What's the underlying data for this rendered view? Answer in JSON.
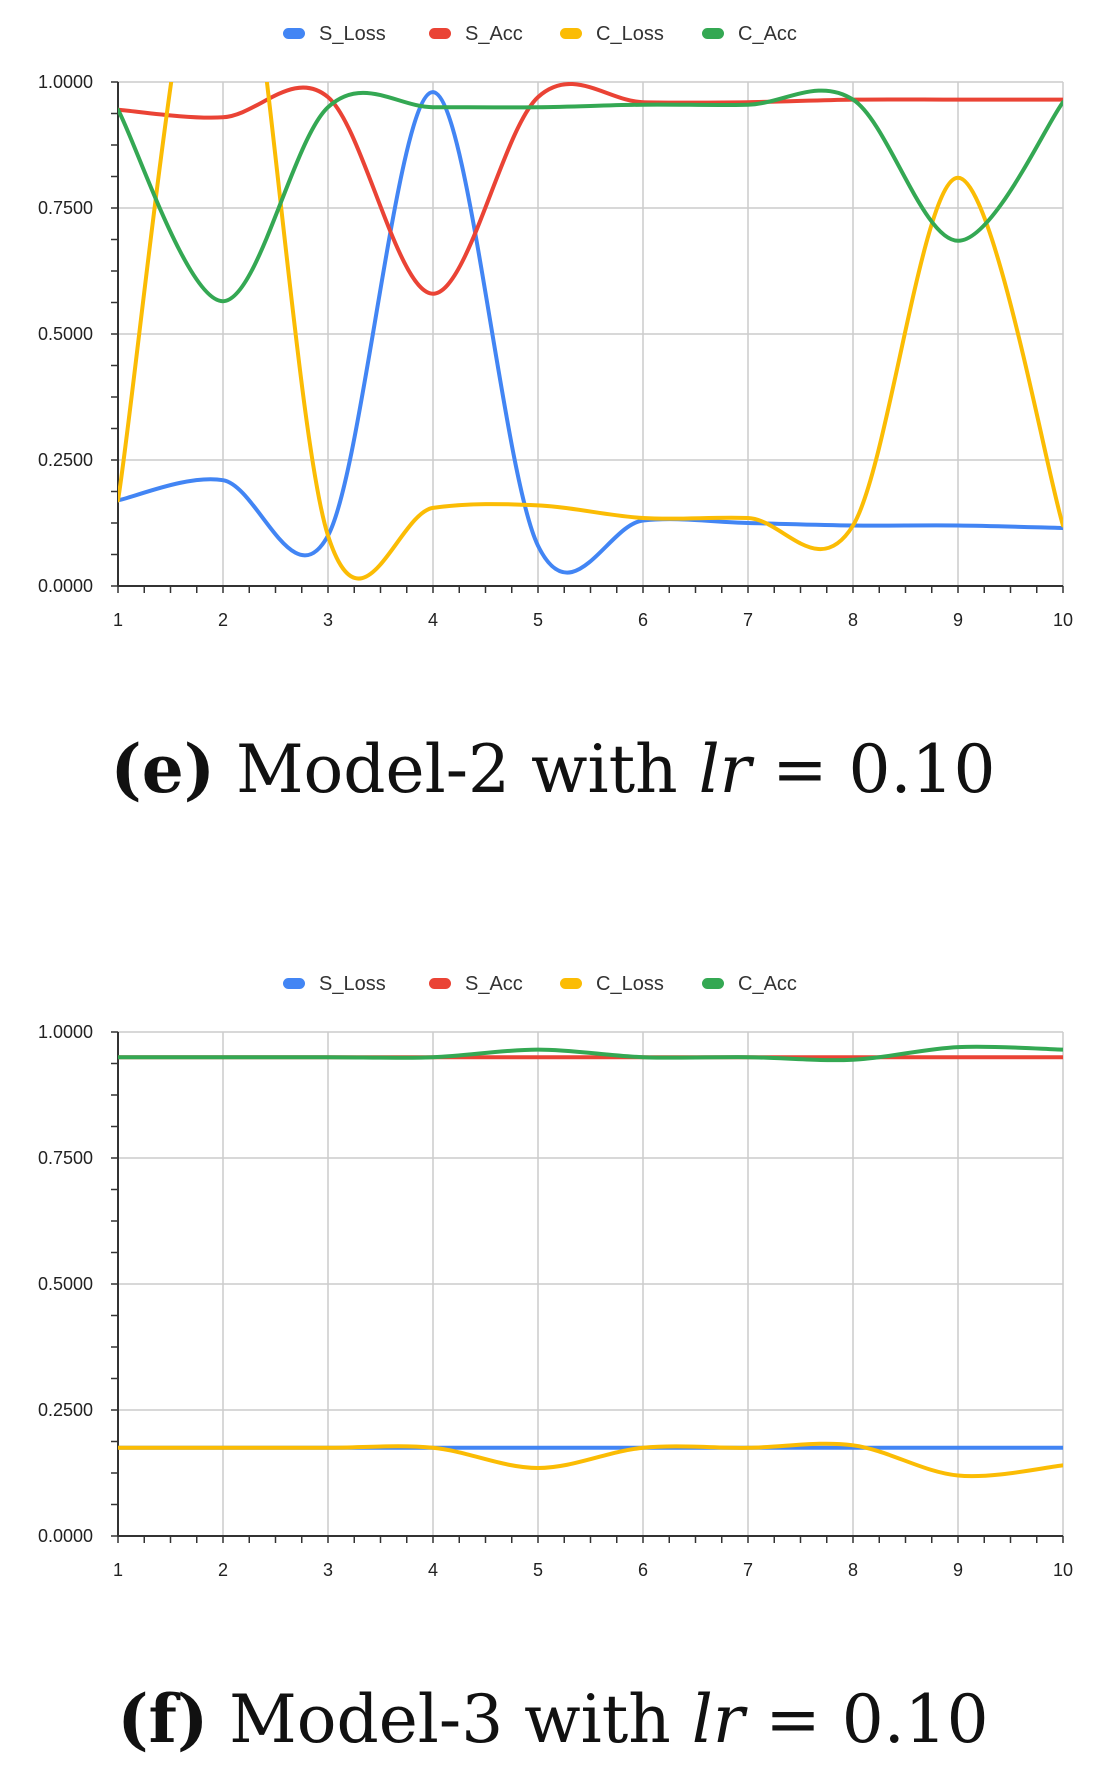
{
  "chart_data": [
    {
      "type": "line",
      "caption": {
        "tag": "(e)",
        "text": " Model-2 with ",
        "math": "lr",
        "rest": " = 0.10"
      },
      "x": [
        1,
        2,
        3,
        4,
        5,
        6,
        7,
        8,
        9,
        10
      ],
      "ylim": [
        0,
        1
      ],
      "yticks": [
        "0.0000",
        "0.2500",
        "0.5000",
        "0.7500",
        "1.0000"
      ],
      "xticks": [
        "1",
        "2",
        "3",
        "4",
        "5",
        "6",
        "7",
        "8",
        "9",
        "10"
      ],
      "grid": true,
      "legend_position": "top",
      "series": [
        {
          "name": "S_Loss",
          "color": "#4285F4",
          "values": [
            0.17,
            0.21,
            0.1,
            0.98,
            0.08,
            0.13,
            0.125,
            0.12,
            0.12,
            0.115
          ]
        },
        {
          "name": "S_Acc",
          "color": "#EA4335",
          "values": [
            0.945,
            0.93,
            0.97,
            0.58,
            0.97,
            0.96,
            0.96,
            0.965,
            0.965,
            0.965
          ]
        },
        {
          "name": "C_Loss",
          "color": "#FBBC04",
          "values": [
            0.17,
            1.45,
            0.1,
            0.155,
            0.16,
            0.135,
            0.135,
            0.12,
            0.81,
            0.12
          ]
        },
        {
          "name": "C_Acc",
          "color": "#34A853",
          "values": [
            0.945,
            0.565,
            0.95,
            0.95,
            0.95,
            0.955,
            0.955,
            0.965,
            0.685,
            0.96
          ]
        }
      ]
    },
    {
      "type": "line",
      "caption": {
        "tag": "(f)",
        "text": " Model-3 with ",
        "math": "lr",
        "rest": " = 0.10"
      },
      "x": [
        1,
        2,
        3,
        4,
        5,
        6,
        7,
        8,
        9,
        10
      ],
      "ylim": [
        0,
        1
      ],
      "yticks": [
        "0.0000",
        "0.2500",
        "0.5000",
        "0.7500",
        "1.0000"
      ],
      "xticks": [
        "1",
        "2",
        "3",
        "4",
        "5",
        "6",
        "7",
        "8",
        "9",
        "10"
      ],
      "grid": true,
      "legend_position": "top",
      "series": [
        {
          "name": "S_Loss",
          "color": "#4285F4",
          "values": [
            0.175,
            0.175,
            0.175,
            0.175,
            0.175,
            0.175,
            0.175,
            0.175,
            0.175,
            0.175
          ]
        },
        {
          "name": "S_Acc",
          "color": "#EA4335",
          "values": [
            0.95,
            0.95,
            0.95,
            0.95,
            0.95,
            0.95,
            0.95,
            0.95,
            0.95,
            0.95
          ]
        },
        {
          "name": "C_Loss",
          "color": "#FBBC04",
          "values": [
            0.175,
            0.175,
            0.175,
            0.175,
            0.135,
            0.175,
            0.175,
            0.18,
            0.12,
            0.14
          ]
        },
        {
          "name": "C_Acc",
          "color": "#34A853",
          "values": [
            0.95,
            0.95,
            0.95,
            0.95,
            0.965,
            0.95,
            0.95,
            0.945,
            0.97,
            0.965
          ]
        }
      ]
    }
  ]
}
